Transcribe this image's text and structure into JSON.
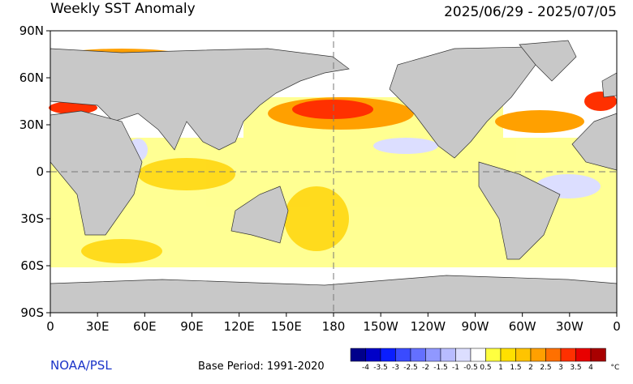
{
  "header": {
    "title": "Weekly SST Anomaly",
    "date_range": "2025/06/29 - 2025/07/05"
  },
  "map": {
    "lat_ticks": [
      {
        "value": 90,
        "label": "90N"
      },
      {
        "value": 60,
        "label": "60N"
      },
      {
        "value": 30,
        "label": "30N"
      },
      {
        "value": 0,
        "label": "0"
      },
      {
        "value": -30,
        "label": "30S"
      },
      {
        "value": -60,
        "label": "60S"
      },
      {
        "value": -90,
        "label": "90S"
      }
    ],
    "lon_ticks": [
      {
        "value": 0,
        "label": "0"
      },
      {
        "value": 30,
        "label": "30E"
      },
      {
        "value": 60,
        "label": "60E"
      },
      {
        "value": 90,
        "label": "90E"
      },
      {
        "value": 120,
        "label": "120E"
      },
      {
        "value": 150,
        "label": "150E"
      },
      {
        "value": 180,
        "label": "180"
      },
      {
        "value": 210,
        "label": "150W"
      },
      {
        "value": 240,
        "label": "120W"
      },
      {
        "value": 270,
        "label": "90W"
      },
      {
        "value": 300,
        "label": "60W"
      },
      {
        "value": 330,
        "label": "30W"
      },
      {
        "value": 360,
        "label": "0"
      }
    ]
  },
  "footer": {
    "source": "NOAA/PSL",
    "base_period": "Base Period: 1991-2020"
  },
  "colorbar": {
    "ticks": [
      -4,
      -3.5,
      -3,
      -2.5,
      -2,
      -1.5,
      -1,
      -0.5,
      0.5,
      1,
      1.5,
      2,
      2.5,
      3,
      3.5,
      4
    ],
    "colors": [
      "#00008b",
      "#0000c8",
      "#0a1eff",
      "#3a4bff",
      "#6470ff",
      "#9098ff",
      "#b8bcff",
      "#dcdeff",
      "#ffffff",
      "#ffff40",
      "#ffe000",
      "#ffc400",
      "#ffa000",
      "#ff7000",
      "#ff3000",
      "#e80000",
      "#a80000"
    ],
    "unit": "°C"
  }
}
